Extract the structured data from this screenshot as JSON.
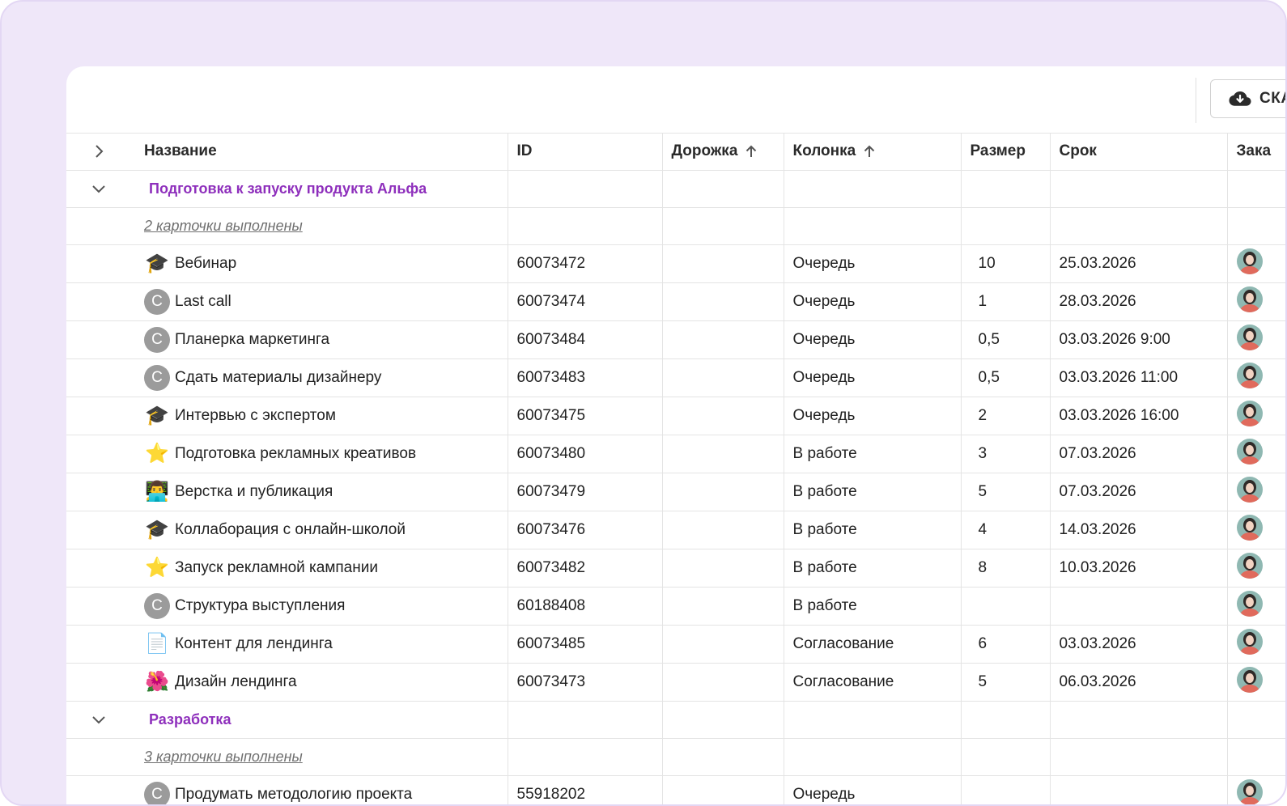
{
  "toolbar": {
    "export_label": "СКА"
  },
  "columns": {
    "name": "Название",
    "id": "ID",
    "lane": "Дорожка",
    "column": "Колонка",
    "size": "Размер",
    "due": "Срок",
    "customer": "Зака"
  },
  "groups": [
    {
      "title": "Подготовка к запуску продукта Альфа",
      "done": "2 карточки выполнены",
      "rows": [
        {
          "icon": "graduation-cap-icon",
          "glyph": "🎓",
          "name": "Вебинар",
          "id": "60073472",
          "column": "Очередь",
          "size": "10",
          "due": "25.03.2026"
        },
        {
          "icon": "letter-c-icon",
          "glyph": "C",
          "name": "Last call",
          "id": "60073474",
          "column": "Очередь",
          "size": "1",
          "due": "28.03.2026"
        },
        {
          "icon": "letter-c-icon",
          "glyph": "C",
          "name": "Планерка маркетинга",
          "id": "60073484",
          "column": "Очередь",
          "size": "0,5",
          "due": "03.03.2026 9:00"
        },
        {
          "icon": "letter-c-icon",
          "glyph": "C",
          "name": "Сдать материалы дизайнеру",
          "id": "60073483",
          "column": "Очередь",
          "size": "0,5",
          "due": "03.03.2026 11:00"
        },
        {
          "icon": "graduation-cap-icon",
          "glyph": "🎓",
          "name": "Интервью с экспертом",
          "id": "60073475",
          "column": "Очередь",
          "size": "2",
          "due": "03.03.2026 16:00"
        },
        {
          "icon": "star-icon",
          "glyph": "⭐",
          "name": "Подготовка рекламных креативов",
          "id": "60073480",
          "column": "В работе",
          "size": "3",
          "due": "07.03.2026"
        },
        {
          "icon": "technologist-icon",
          "glyph": "👨‍💻",
          "name": "Верстка и публикация",
          "id": "60073479",
          "column": "В работе",
          "size": "5",
          "due": "07.03.2026"
        },
        {
          "icon": "graduation-cap-icon",
          "glyph": "🎓",
          "name": "Коллаборация с онлайн-школой",
          "id": "60073476",
          "column": "В работе",
          "size": "4",
          "due": "14.03.2026"
        },
        {
          "icon": "star-icon",
          "glyph": "⭐",
          "name": "Запуск рекламной кампании",
          "id": "60073482",
          "column": "В работе",
          "size": "8",
          "due": "10.03.2026"
        },
        {
          "icon": "letter-c-icon",
          "glyph": "C",
          "name": "Структура выступления",
          "id": "60188408",
          "column": "В работе",
          "size": "",
          "due": ""
        },
        {
          "icon": "document-icon",
          "glyph": "📄",
          "name": "Контент для лендинга",
          "id": "60073485",
          "column": "Согласование",
          "size": "6",
          "due": "03.03.2026"
        },
        {
          "icon": "hibiscus-icon",
          "glyph": "🌺",
          "name": "Дизайн лендинга",
          "id": "60073473",
          "column": "Согласование",
          "size": "5",
          "due": "06.03.2026"
        }
      ]
    },
    {
      "title": "Разработка",
      "done": "3 карточки выполнены",
      "rows": [
        {
          "icon": "letter-c-icon",
          "glyph": "C",
          "name": "Продумать методологию проекта",
          "id": "55918202",
          "column": "Очередь",
          "size": "",
          "due": ""
        }
      ]
    }
  ]
}
